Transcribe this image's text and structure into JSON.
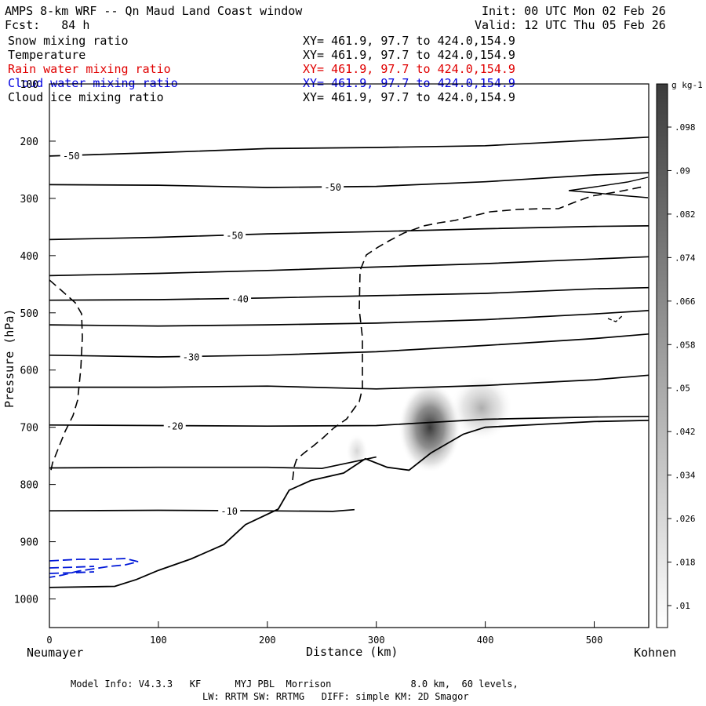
{
  "header": {
    "title": "AMPS 8-km WRF -- Qn Maud Land Coast window",
    "forecast": "Fcst:   84 h",
    "init": "Init: 00 UTC Mon 02 Feb 26",
    "valid": "Valid: 12 UTC Thu 05 Feb 26"
  },
  "fields": [
    {
      "name": "Snow mixing ratio",
      "xy": "XY= 461.9, 97.7 to 424.0,154.9",
      "color": "#000000"
    },
    {
      "name": "Temperature",
      "xy": "XY= 461.9, 97.7 to 424.0,154.9",
      "color": "#000000"
    },
    {
      "name": "Rain water mixing ratio",
      "xy": "XY= 461.9, 97.7 to 424.0,154.9",
      "color": "#e00000"
    },
    {
      "name": "Cloud water mixing ratio",
      "xy": "XY= 461.9, 97.7 to 424.0,154.9",
      "color": "#0000e0"
    },
    {
      "name": "Cloud ice mixing ratio",
      "xy": "XY= 461.9, 97.7 to 424.0,154.9",
      "color": "#000000"
    }
  ],
  "chart_data": {
    "type": "cross-section contour",
    "xlabel": "Distance (km)",
    "ylabel": "Pressure (hPa)",
    "xlim": [
      0,
      550
    ],
    "ylim": [
      1050,
      100
    ],
    "x_ticks": [
      0,
      100,
      200,
      300,
      400,
      500
    ],
    "y_ticks": [
      100,
      200,
      300,
      400,
      500,
      600,
      700,
      800,
      900,
      1000
    ],
    "left_endpoint": "Neumayer",
    "right_endpoint": "Kohnen",
    "colorbar": {
      "unit": "g kg-1",
      "ticks": [
        ".01",
        ".018",
        ".026",
        ".034",
        ".042",
        ".05",
        ".058",
        ".066",
        ".074",
        ".082",
        ".09",
        ".098"
      ]
    },
    "isotherms": [
      {
        "label": "-50",
        "points": [
          [
            0,
            226
          ],
          [
            100,
            220
          ],
          [
            200,
            213
          ],
          [
            300,
            211
          ],
          [
            400,
            208
          ],
          [
            500,
            198
          ],
          [
            550,
            193
          ]
        ]
      },
      {
        "label": "-50",
        "points": [
          [
            0,
            276
          ],
          [
            100,
            277
          ],
          [
            200,
            281
          ],
          [
            300,
            279
          ],
          [
            400,
            271
          ],
          [
            500,
            259
          ],
          [
            550,
            255
          ]
        ]
      },
      {
        "label": "-50",
        "points": [
          [
            0,
            372
          ],
          [
            100,
            368
          ],
          [
            200,
            362
          ],
          [
            300,
            358
          ],
          [
            400,
            353
          ],
          [
            500,
            349
          ],
          [
            550,
            348
          ]
        ]
      },
      {
        "label": "",
        "points": [
          [
            0,
            435
          ],
          [
            100,
            431
          ],
          [
            200,
            426
          ],
          [
            300,
            420
          ],
          [
            400,
            414
          ],
          [
            500,
            406
          ],
          [
            550,
            402
          ]
        ]
      },
      {
        "label": "-40",
        "points": [
          [
            0,
            478
          ],
          [
            100,
            477
          ],
          [
            200,
            474
          ],
          [
            300,
            470
          ],
          [
            400,
            466
          ],
          [
            500,
            458
          ],
          [
            550,
            456
          ]
        ]
      },
      {
        "label": "",
        "points": [
          [
            0,
            521
          ],
          [
            100,
            523
          ],
          [
            200,
            521
          ],
          [
            300,
            518
          ],
          [
            400,
            512
          ],
          [
            500,
            502
          ],
          [
            550,
            496
          ]
        ]
      },
      {
        "label": "-30",
        "points": [
          [
            0,
            574
          ],
          [
            100,
            577
          ],
          [
            200,
            574
          ],
          [
            300,
            568
          ],
          [
            400,
            557
          ],
          [
            500,
            545
          ],
          [
            550,
            537
          ]
        ]
      },
      {
        "label": "",
        "points": [
          [
            0,
            630
          ],
          [
            100,
            630
          ],
          [
            200,
            628
          ],
          [
            300,
            633
          ],
          [
            400,
            627
          ],
          [
            500,
            617
          ],
          [
            550,
            609
          ]
        ]
      },
      {
        "label": "-20",
        "points": [
          [
            0,
            696
          ],
          [
            100,
            697
          ],
          [
            200,
            698
          ],
          [
            300,
            697
          ],
          [
            400,
            686
          ],
          [
            500,
            682
          ],
          [
            550,
            681
          ]
        ]
      },
      {
        "label": "",
        "points": [
          [
            0,
            771
          ],
          [
            100,
            770
          ],
          [
            200,
            770
          ],
          [
            250,
            772
          ],
          [
            300,
            752
          ]
        ]
      },
      {
        "label": "-10",
        "points": [
          [
            0,
            846
          ],
          [
            100,
            845
          ],
          [
            200,
            846
          ],
          [
            260,
            847
          ],
          [
            280,
            844
          ]
        ]
      }
    ],
    "terrain_km_hpa": [
      [
        0,
        980
      ],
      [
        60,
        978
      ],
      [
        80,
        966
      ],
      [
        100,
        950
      ],
      [
        130,
        930
      ],
      [
        160,
        905
      ],
      [
        180,
        870
      ],
      [
        210,
        843
      ],
      [
        220,
        810
      ],
      [
        240,
        793
      ],
      [
        270,
        780
      ],
      [
        290,
        755
      ],
      [
        310,
        770
      ],
      [
        330,
        775
      ],
      [
        350,
        745
      ],
      [
        380,
        712
      ],
      [
        400,
        700
      ],
      [
        450,
        695
      ],
      [
        500,
        690
      ],
      [
        550,
        688
      ]
    ],
    "snow_max_g_per_kg": 0.098
  },
  "footer": {
    "line1": "Model Info: V4.3.3   KF      MYJ PBL  Morrison              8.0 km,  60 levels,",
    "line2": "LW: RRTM SW: RRTMG   DIFF: simple KM: 2D Smagor"
  }
}
